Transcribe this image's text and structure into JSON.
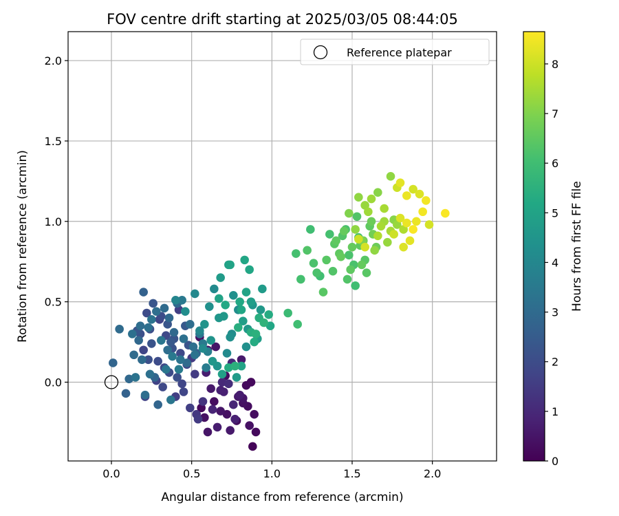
{
  "chart_data": {
    "type": "scatter",
    "title": "FOV centre drift starting at 2025/03/05 08:44:05",
    "xlabel": "Angular distance from reference (arcmin)",
    "ylabel": "Rotation from reference (arcmin)",
    "xlim": [
      -0.27,
      2.4
    ],
    "ylim": [
      -0.49,
      2.18
    ],
    "xticks": [
      0.0,
      0.5,
      1.0,
      1.5,
      2.0
    ],
    "xtick_labels": [
      "0.0",
      "0.5",
      "1.0",
      "1.5",
      "2.0"
    ],
    "yticks": [
      0.0,
      0.5,
      1.0,
      1.5,
      2.0
    ],
    "ytick_labels": [
      "0.0",
      "0.5",
      "1.0",
      "1.5",
      "2.0"
    ],
    "grid": true,
    "legend": {
      "placement": "top-right",
      "entries": [
        "Reference platepar"
      ]
    },
    "reference_point": {
      "x": 0.0,
      "y": 0.0,
      "label": "Reference platepar"
    },
    "colorbar": {
      "label": "Hours from first FF file",
      "range": [
        0,
        8.65
      ],
      "ticks": [
        0,
        1,
        2,
        3,
        4,
        5,
        6,
        7,
        8
      ],
      "tick_labels": [
        "0",
        "1",
        "2",
        "3",
        "4",
        "5",
        "6",
        "7",
        "8"
      ],
      "colormap": "viridis"
    },
    "series": [
      {
        "x": [
          0.56,
          0.58,
          0.6,
          0.62,
          0.64,
          0.66,
          0.68,
          0.7,
          0.72,
          0.74,
          0.76,
          0.78,
          0.8,
          0.82,
          0.84,
          0.86,
          0.88,
          0.9,
          0.55,
          0.63,
          0.71,
          0.79,
          0.87,
          0.6,
          0.68,
          0.75,
          0.82,
          0.89,
          0.59,
          0.65,
          0.73,
          0.81,
          0.77,
          0.69,
          0.85
        ],
        "y": [
          -0.16,
          -0.22,
          -0.31,
          -0.04,
          -0.12,
          -0.28,
          -0.18,
          -0.06,
          -0.2,
          -0.3,
          -0.14,
          -0.24,
          -0.08,
          -0.1,
          -0.02,
          -0.27,
          -0.4,
          -0.31,
          0.28,
          -0.17,
          0.04,
          -0.09,
          0.0,
          0.2,
          -0.05,
          0.12,
          -0.13,
          -0.2,
          0.06,
          0.22,
          -0.01,
          0.14,
          -0.23,
          0.0,
          -0.15
        ],
        "hours": [
          0.2,
          0.4,
          0.5,
          0.6,
          0.3,
          0.7,
          0.5,
          0.8,
          0.4,
          0.6,
          0.9,
          0.3,
          0.7,
          0.5,
          0.2,
          0.4,
          0.1,
          0.2,
          0.4,
          0.9,
          0.3,
          0.6,
          0.2,
          0.5,
          0.8,
          1.0,
          0.4,
          0.3,
          0.7,
          0.5,
          1.1,
          0.6,
          0.8,
          1.0,
          0.3
        ]
      },
      {
        "x": [
          0.18,
          0.22,
          0.26,
          0.3,
          0.34,
          0.38,
          0.42,
          0.46,
          0.5,
          0.2,
          0.24,
          0.28,
          0.32,
          0.36,
          0.4,
          0.44,
          0.48,
          0.52,
          0.16,
          0.21,
          0.33,
          0.37,
          0.45,
          0.53,
          0.29,
          0.41,
          0.49,
          0.25,
          0.35,
          0.43,
          0.54,
          0.31,
          0.39,
          0.47,
          0.57,
          0.23
        ],
        "y": [
          0.3,
          0.43,
          0.49,
          0.39,
          0.29,
          0.21,
          0.45,
          0.35,
          0.15,
          0.2,
          0.33,
          0.01,
          -0.03,
          0.06,
          -0.09,
          -0.01,
          0.23,
          0.05,
          0.32,
          -0.09,
          0.09,
          0.25,
          -0.06,
          -0.2,
          0.13,
          0.03,
          -0.16,
          0.24,
          0.36,
          0.18,
          -0.23,
          0.41,
          0.27,
          0.11,
          -0.12,
          0.14
        ],
        "hours": [
          2.1,
          2.0,
          2.3,
          1.7,
          1.9,
          2.2,
          1.6,
          2.4,
          1.5,
          1.8,
          2.1,
          1.7,
          1.9,
          2.0,
          1.6,
          1.8,
          2.2,
          1.5,
          2.3,
          1.7,
          1.9,
          2.4,
          1.8,
          1.4,
          2.0,
          2.1,
          1.6,
          2.2,
          2.3,
          1.9,
          1.5,
          2.0,
          2.2,
          1.8,
          1.3,
          2.1
        ]
      },
      {
        "x": [
          0.01,
          0.05,
          0.09,
          0.13,
          0.17,
          0.21,
          0.25,
          0.29,
          0.33,
          0.37,
          0.41,
          0.45,
          0.49,
          0.53,
          0.57,
          0.11,
          0.15,
          0.19,
          0.23,
          0.27,
          0.31,
          0.35,
          0.39,
          0.43,
          0.47,
          0.51,
          0.55,
          0.59,
          0.2,
          0.28,
          0.36,
          0.44,
          0.52,
          0.6,
          0.14,
          0.24,
          0.34,
          0.42,
          0.18,
          0.38
        ],
        "y": [
          0.12,
          0.33,
          -0.07,
          0.3,
          0.26,
          -0.08,
          0.39,
          -0.14,
          0.46,
          -0.11,
          0.49,
          0.27,
          0.36,
          0.18,
          0.24,
          0.02,
          0.03,
          0.14,
          0.34,
          0.03,
          0.26,
          0.2,
          0.31,
          0.14,
          0.12,
          0.22,
          0.3,
          0.09,
          0.56,
          0.44,
          0.4,
          0.51,
          0.17,
          0.19,
          0.17,
          0.05,
          0.08,
          0.08,
          0.35,
          0.16
        ],
        "hours": [
          2.8,
          3.0,
          2.7,
          3.2,
          2.9,
          3.1,
          3.3,
          2.8,
          3.0,
          3.4,
          2.9,
          3.2,
          3.1,
          2.7,
          3.5,
          2.9,
          3.3,
          3.0,
          3.2,
          2.8,
          3.4,
          3.1,
          2.9,
          3.3,
          3.0,
          3.2,
          3.4,
          3.6,
          2.7,
          3.1,
          2.9,
          3.5,
          3.3,
          3.7,
          3.0,
          3.2,
          3.4,
          3.6,
          3.1,
          3.5
        ]
      },
      {
        "x": [
          0.4,
          0.46,
          0.52,
          0.58,
          0.64,
          0.7,
          0.76,
          0.82,
          0.88,
          0.94,
          0.55,
          0.61,
          0.67,
          0.73,
          0.79,
          0.85,
          0.91,
          0.66,
          0.72,
          0.78,
          0.84,
          0.63,
          0.69,
          0.75,
          0.81,
          0.87,
          0.93,
          0.99,
          0.57,
          0.62,
          0.68,
          0.74
        ],
        "y": [
          0.51,
          0.44,
          0.55,
          0.36,
          0.58,
          0.41,
          0.54,
          0.38,
          0.48,
          0.58,
          0.32,
          0.47,
          0.4,
          0.73,
          0.45,
          0.33,
          0.27,
          0.1,
          0.18,
          0.03,
          0.22,
          0.13,
          0.05,
          0.3,
          0.1,
          0.5,
          0.45,
          0.35,
          0.21,
          0.26,
          0.65,
          0.28
        ],
        "hours": [
          3.9,
          4.2,
          4.0,
          4.4,
          4.1,
          4.6,
          4.3,
          4.8,
          4.5,
          4.7,
          4.0,
          4.3,
          4.5,
          4.9,
          4.2,
          4.6,
          4.8,
          4.4,
          4.1,
          4.7,
          4.3,
          4.5,
          4.9,
          4.2,
          5.0,
          4.8,
          4.6,
          5.1,
          4.1,
          4.4,
          4.7,
          4.3
        ]
      },
      {
        "x": [
          0.74,
          0.8,
          0.86,
          0.92,
          0.98,
          0.77,
          0.83,
          0.89,
          0.71,
          0.79,
          0.84,
          0.9,
          0.95,
          0.73,
          0.81,
          0.67,
          0.87
        ],
        "y": [
          0.73,
          0.5,
          0.7,
          0.4,
          0.42,
          0.1,
          0.76,
          0.25,
          0.48,
          0.34,
          0.56,
          0.3,
          0.37,
          0.09,
          0.45,
          0.52,
          0.31
        ],
        "hours": [
          5.0,
          5.2,
          5.1,
          5.4,
          5.3,
          5.5,
          5.1,
          5.3,
          5.2,
          5.4,
          5.0,
          5.5,
          5.6,
          5.3,
          5.1,
          5.0,
          5.4
        ]
      },
      {
        "x": [
          1.1,
          1.16,
          1.18,
          1.22,
          1.24,
          1.28,
          1.32,
          1.36,
          1.4,
          1.44,
          1.48,
          1.52,
          1.56,
          1.34,
          1.38,
          1.42,
          1.46,
          1.5,
          1.54,
          1.58,
          1.62,
          1.26,
          1.3,
          1.45,
          1.49,
          1.53,
          1.57,
          1.61,
          1.65,
          1.15,
          1.39,
          1.43,
          1.47,
          1.51,
          1.55,
          1.59,
          1.63
        ],
        "y": [
          0.43,
          0.36,
          0.64,
          0.82,
          0.95,
          0.68,
          0.56,
          0.92,
          0.88,
          0.91,
          0.79,
          0.6,
          0.73,
          0.76,
          0.69,
          0.8,
          0.95,
          0.84,
          0.9,
          0.76,
          1.0,
          0.74,
          0.66,
          0.94,
          0.7,
          1.03,
          0.88,
          0.97,
          0.84,
          0.8,
          0.86,
          0.78,
          0.64,
          0.73,
          0.85,
          0.68,
          0.92
        ],
        "hours": [
          5.9,
          6.0,
          6.1,
          6.3,
          6.0,
          6.2,
          6.4,
          6.1,
          6.5,
          6.3,
          6.2,
          6.0,
          6.6,
          6.4,
          6.3,
          6.5,
          6.2,
          6.6,
          6.1,
          6.4,
          6.7,
          6.2,
          6.0,
          6.6,
          6.5,
          6.3,
          6.8,
          6.5,
          6.7,
          6.1,
          6.4,
          6.6,
          6.3,
          6.2,
          6.5,
          6.4,
          6.8
        ]
      },
      {
        "x": [
          1.48,
          1.54,
          1.58,
          1.62,
          1.66,
          1.7,
          1.74,
          1.78,
          1.82,
          1.56,
          1.6,
          1.64,
          1.68,
          1.72,
          1.76,
          1.52,
          1.66,
          1.7,
          1.74
        ],
        "y": [
          1.05,
          1.15,
          1.1,
          1.14,
          1.18,
          1.08,
          1.28,
          0.98,
          0.95,
          0.88,
          1.06,
          0.82,
          0.97,
          0.87,
          1.01,
          0.95,
          0.91,
          1.0,
          0.94
        ],
        "hours": [
          7.0,
          7.2,
          7.3,
          7.4,
          7.1,
          7.5,
          7.2,
          7.3,
          7.6,
          7.0,
          7.4,
          7.2,
          7.5,
          7.3,
          7.1,
          7.2,
          7.6,
          7.4,
          7.5
        ]
      },
      {
        "x": [
          1.8,
          1.84,
          1.88,
          1.92,
          1.96,
          2.08,
          1.78,
          1.82,
          1.86,
          1.9,
          1.94,
          1.98,
          1.76,
          1.8,
          1.84,
          1.88,
          1.54,
          1.58
        ],
        "y": [
          1.24,
          1.16,
          1.2,
          1.17,
          1.13,
          1.05,
          1.21,
          0.84,
          0.88,
          1.0,
          1.06,
          0.98,
          0.92,
          1.02,
          0.99,
          0.95,
          0.89,
          0.84
        ],
        "hours": [
          8.3,
          8.4,
          8.1,
          8.2,
          8.5,
          8.6,
          8.0,
          8.2,
          8.3,
          8.4,
          8.5,
          8.1,
          8.0,
          8.2,
          8.4,
          8.6,
          8.0,
          8.1
        ]
      }
    ]
  }
}
